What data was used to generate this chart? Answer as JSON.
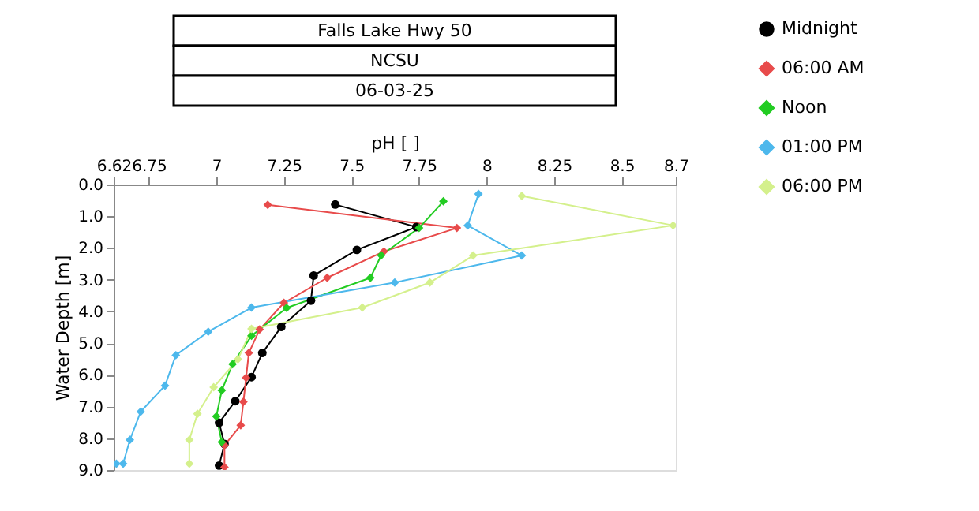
{
  "chart_data": {
    "type": "line",
    "title": "Falls Lake Hwy 50",
    "subtitle": "NCSU",
    "annotations": [
      "06-03-25"
    ],
    "xlabel": "pH [ ]",
    "ylabel": "Water Depth [m]",
    "xlim": [
      6.62,
      8.7
    ],
    "xticks": [
      6.62,
      6.75,
      7,
      7.25,
      7.5,
      7.75,
      8,
      8.25,
      8.5,
      8.7
    ],
    "ylim": [
      9,
      0
    ],
    "yticks": [
      {
        "value": 0,
        "label": "0.0"
      },
      {
        "value": 1,
        "label": "1.0"
      },
      {
        "value": 2,
        "label": "2.0"
      },
      {
        "value": 3,
        "label": "3.0"
      },
      {
        "value": 4,
        "label": "4.0"
      },
      {
        "value": 5,
        "label": "5.0"
      },
      {
        "value": 6,
        "label": "6.0"
      },
      {
        "value": 7,
        "label": "7.0"
      },
      {
        "value": 8,
        "label": "8.0"
      },
      {
        "value": 9,
        "label": "9.0"
      }
    ],
    "grid": false,
    "legend": "top right",
    "marker": "diamond",
    "line_style": "solid",
    "series": [
      {
        "name": "Midnight",
        "color": "#000000",
        "marker": "circle",
        "x": [
          7.44,
          7.74,
          7.52,
          7.36,
          7.35,
          7.24,
          7.17,
          7.13,
          7.07,
          7.01,
          7.03,
          7.01
        ],
        "values": [
          0.63,
          1.34,
          2.06,
          2.87,
          3.66,
          4.49,
          5.31,
          6.07,
          6.83,
          7.51,
          8.18,
          8.86
        ]
      },
      {
        "name": "06:00 AM",
        "color": "#e84b4b",
        "x": [
          7.19,
          7.89,
          7.62,
          7.41,
          7.25,
          7.16,
          7.12,
          7.11,
          7.1,
          7.09,
          7.03,
          7.03
        ],
        "values": [
          0.64,
          1.37,
          2.11,
          2.94,
          3.73,
          4.57,
          5.31,
          6.09,
          6.85,
          7.59,
          8.22,
          8.91
        ]
      },
      {
        "name": "Noon",
        "color": "#22cc22",
        "x": [
          7.84,
          7.75,
          7.61,
          7.57,
          7.26,
          7.13,
          7.06,
          7.02,
          7.0,
          7.02
        ],
        "values": [
          0.53,
          1.37,
          2.23,
          2.94,
          3.89,
          4.77,
          5.66,
          6.49,
          7.31,
          8.12
        ]
      },
      {
        "name": "01:00 PM",
        "color": "#4db8ec",
        "x": [
          7.97,
          7.93,
          8.13,
          7.66,
          7.13,
          6.97,
          6.85,
          6.81,
          6.72,
          6.68,
          6.655,
          6.63
        ],
        "values": [
          0.3,
          1.29,
          2.24,
          3.09,
          3.88,
          4.64,
          5.38,
          6.34,
          7.16,
          8.05,
          8.8,
          8.8
        ]
      },
      {
        "name": "06:00 PM",
        "color": "#d4f08c",
        "x": [
          8.13,
          8.69,
          7.95,
          7.79,
          7.54,
          7.13,
          7.08,
          6.99,
          6.93,
          6.9,
          6.9
        ],
        "values": [
          0.36,
          1.29,
          2.24,
          3.09,
          3.88,
          4.55,
          5.51,
          6.39,
          7.23,
          8.05,
          8.8
        ]
      }
    ]
  }
}
